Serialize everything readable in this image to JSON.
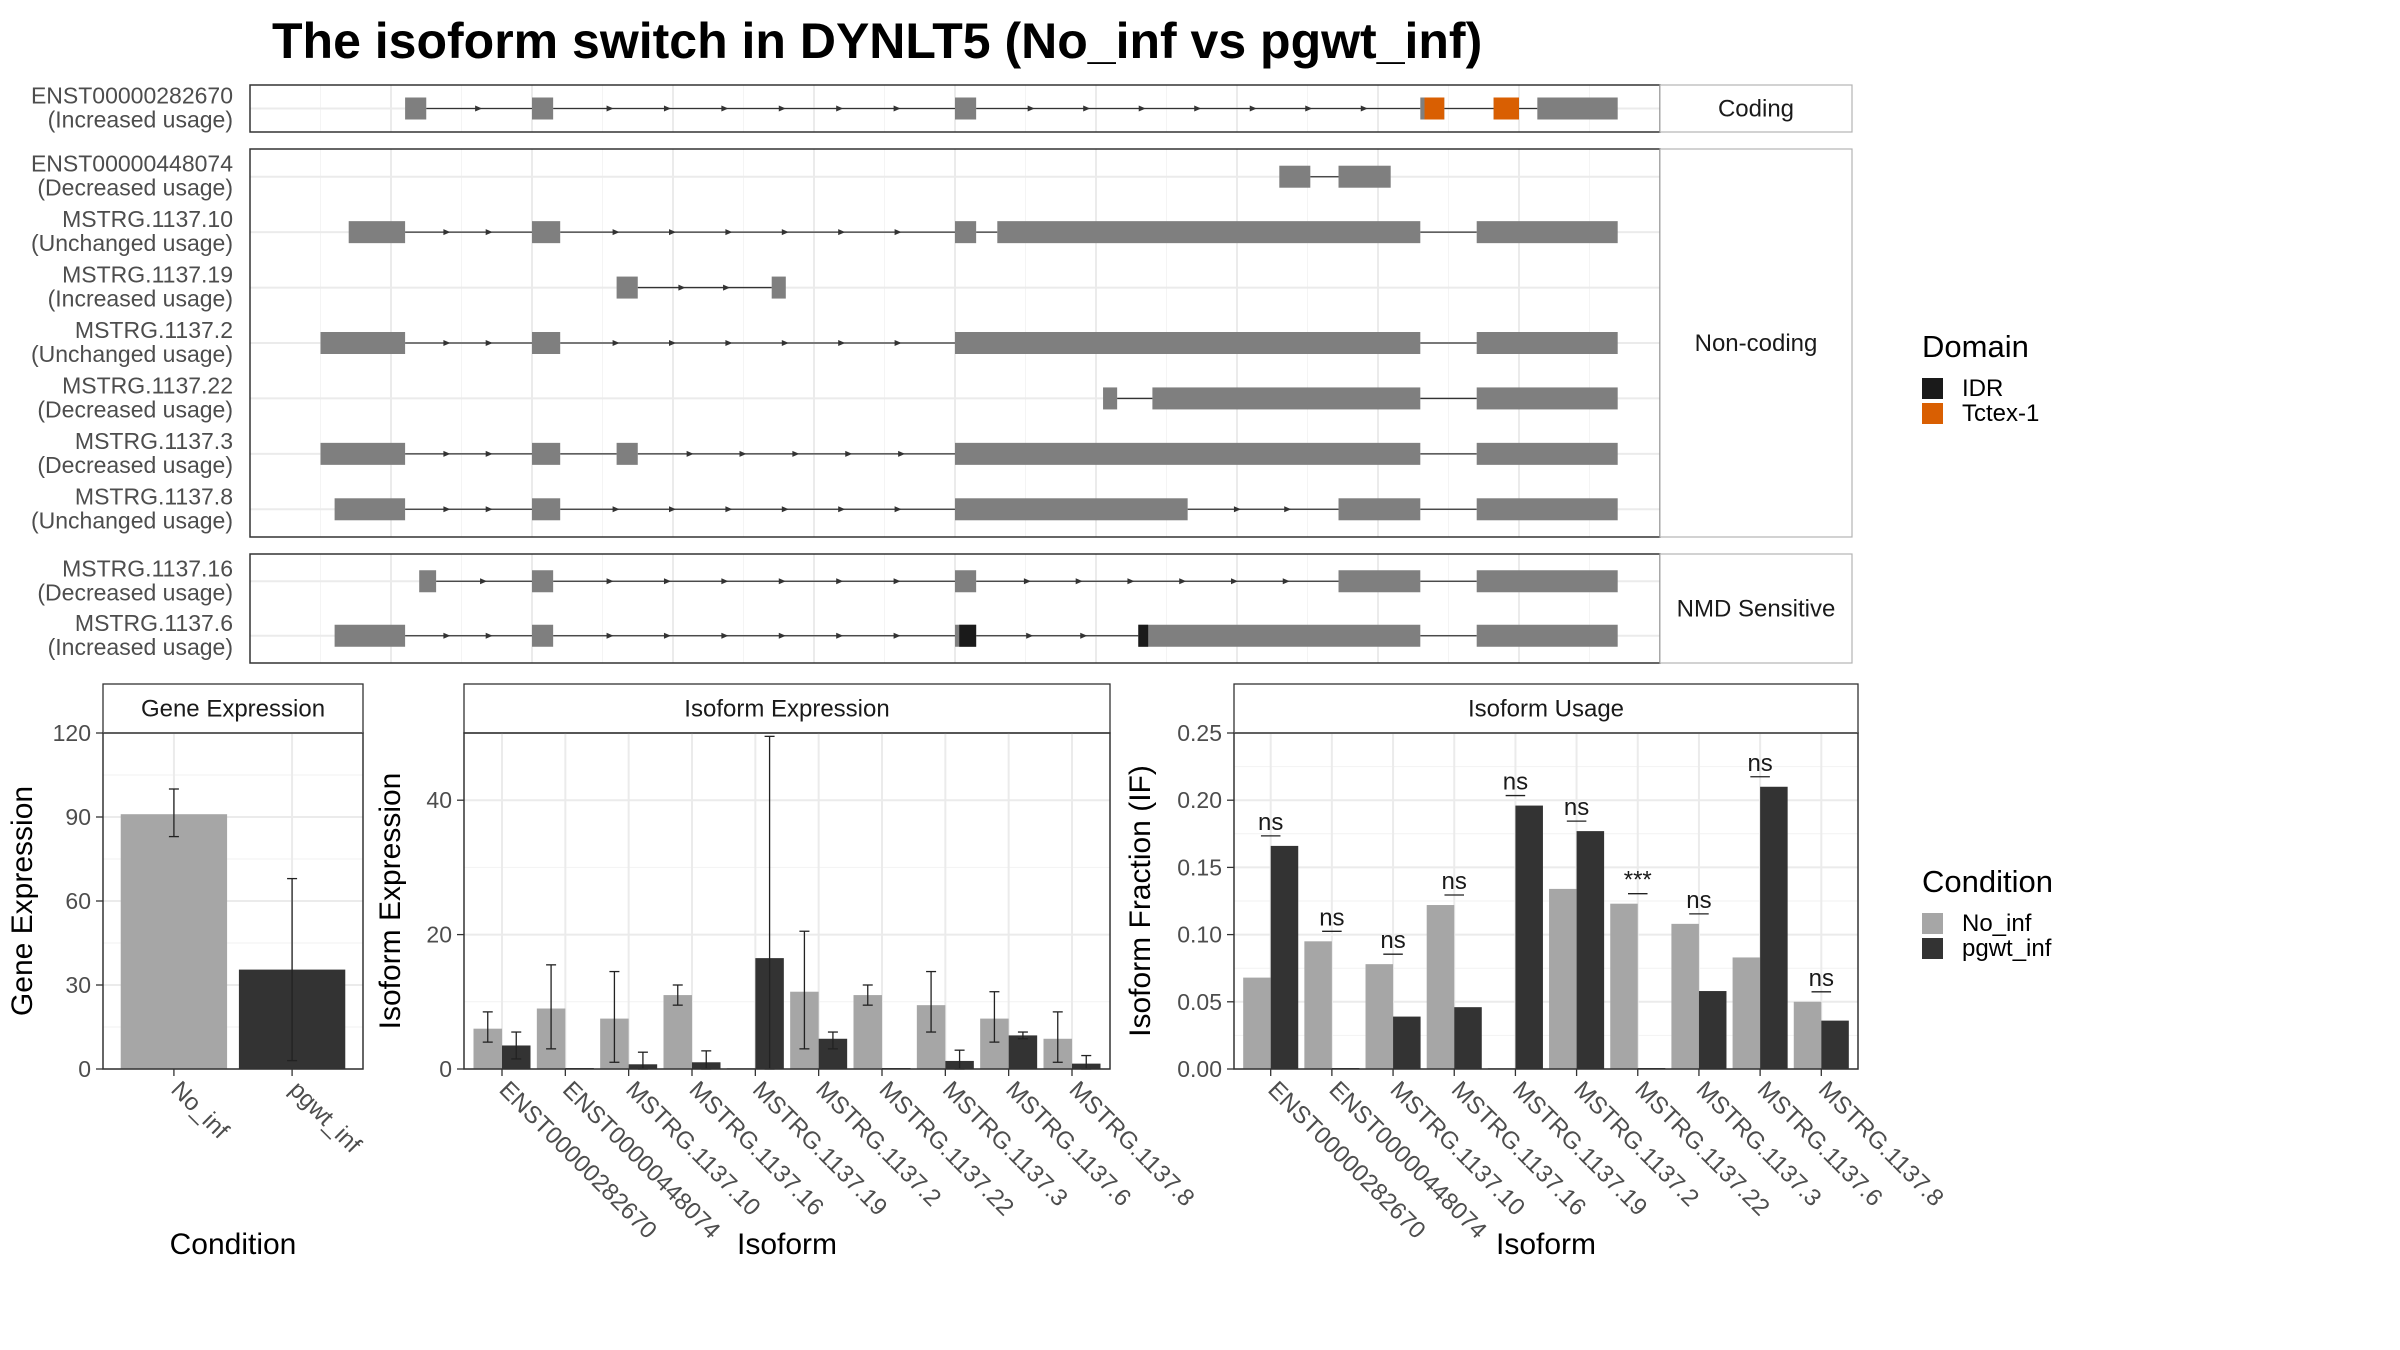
{
  "title": "The isoform switch in DYNLT5 (No_inf vs pgwt_inf)",
  "colors": {
    "no_inf": "#a6a6a6",
    "pgwt_inf": "#333333",
    "exon": "#7f7f7f",
    "idr": "#1a1a1a",
    "tctex": "#d95f02"
  },
  "structure": {
    "facets": [
      "Coding",
      "Non-coding",
      "NMD Sensitive"
    ],
    "transcripts": [
      {
        "facet": "Coding",
        "name": "ENST00000282670",
        "usage": "(Increased usage)",
        "exons": [
          [
            2100,
            2250
          ],
          [
            3000,
            3150
          ],
          [
            6000,
            6150
          ],
          [
            9300,
            9470
          ],
          [
            9820,
            10000
          ],
          [
            10130,
            10700
          ]
        ],
        "domains": [
          {
            "type": "tctex",
            "span": [
              9330,
              9470
            ]
          },
          {
            "type": "tctex",
            "span": [
              9820,
              10000
            ]
          }
        ]
      },
      {
        "facet": "Non-coding",
        "name": "ENST00000448074",
        "usage": "(Decreased usage)",
        "exons": [
          [
            8300,
            8520
          ],
          [
            8720,
            9090
          ]
        ],
        "domains": []
      },
      {
        "facet": "Non-coding",
        "name": "MSTRG.1137.10",
        "usage": "(Unchanged usage)",
        "exons": [
          [
            1700,
            2100
          ],
          [
            3000,
            3200
          ],
          [
            6000,
            6150
          ],
          [
            6300,
            9300
          ],
          [
            9700,
            10700
          ]
        ],
        "domains": []
      },
      {
        "facet": "Non-coding",
        "name": "MSTRG.1137.19",
        "usage": "(Increased usage)",
        "exons": [
          [
            3600,
            3750
          ],
          [
            4700,
            4800
          ]
        ],
        "domains": []
      },
      {
        "facet": "Non-coding",
        "name": "MSTRG.1137.2",
        "usage": "(Unchanged usage)",
        "exons": [
          [
            1500,
            2100
          ],
          [
            3000,
            3200
          ],
          [
            6000,
            9300
          ],
          [
            9700,
            10700
          ]
        ],
        "domains": []
      },
      {
        "facet": "Non-coding",
        "name": "MSTRG.1137.22",
        "usage": "(Decreased usage)",
        "exons": [
          [
            7050,
            7150
          ],
          [
            7400,
            9300
          ],
          [
            9700,
            10700
          ]
        ],
        "domains": []
      },
      {
        "facet": "Non-coding",
        "name": "MSTRG.1137.3",
        "usage": "(Decreased usage)",
        "exons": [
          [
            1500,
            2100
          ],
          [
            3000,
            3200
          ],
          [
            3600,
            3750
          ],
          [
            6000,
            9300
          ],
          [
            9700,
            10700
          ]
        ],
        "domains": []
      },
      {
        "facet": "Non-coding",
        "name": "MSTRG.1137.8",
        "usage": "(Unchanged usage)",
        "exons": [
          [
            1600,
            2100
          ],
          [
            3000,
            3200
          ],
          [
            6000,
            7650
          ],
          [
            8720,
            9300
          ],
          [
            9700,
            10700
          ]
        ],
        "domains": []
      },
      {
        "facet": "NMD Sensitive",
        "name": "MSTRG.1137.16",
        "usage": "(Decreased usage)",
        "exons": [
          [
            2200,
            2320
          ],
          [
            3000,
            3150
          ],
          [
            6000,
            6150
          ],
          [
            8720,
            9300
          ],
          [
            9700,
            10700
          ]
        ],
        "domains": []
      },
      {
        "facet": "NMD Sensitive",
        "name": "MSTRG.1137.6",
        "usage": "(Increased usage)",
        "exons": [
          [
            1600,
            2100
          ],
          [
            3000,
            3150
          ],
          [
            6000,
            6150
          ],
          [
            7300,
            9300
          ],
          [
            9700,
            10700
          ]
        ],
        "domains": [
          {
            "type": "idr",
            "span": [
              6030,
              6150
            ]
          },
          {
            "type": "idr",
            "span": [
              7300,
              7370
            ]
          }
        ]
      }
    ]
  },
  "legends": {
    "domain": {
      "title": "Domain",
      "items": [
        {
          "label": "IDR",
          "color": "#1a1a1a"
        },
        {
          "label": "Tctex-1",
          "color": "#d95f02"
        }
      ]
    },
    "condition": {
      "title": "Condition",
      "items": [
        {
          "label": "No_inf",
          "color": "#a6a6a6"
        },
        {
          "label": "pgwt_inf",
          "color": "#333333"
        }
      ]
    }
  },
  "chart_data": [
    {
      "type": "bar",
      "title": "Gene Expression",
      "xlabel": "Condition",
      "ylabel": "Gene Expression",
      "ylim": [
        0,
        120
      ],
      "yticks": [
        0,
        30,
        60,
        90,
        120
      ],
      "categories": [
        "No_inf",
        "pgwt_inf"
      ],
      "values": [
        91,
        35.5
      ],
      "error": [
        [
          83,
          100
        ],
        [
          3,
          68
        ]
      ]
    },
    {
      "type": "bar",
      "title": "Isoform Expression",
      "xlabel": "Isoform",
      "ylabel": "Isoform Expression",
      "ylim": [
        0,
        50
      ],
      "yticks": [
        0,
        20,
        40
      ],
      "categories": [
        "ENST00000282670",
        "ENST00000448074",
        "MSTRG.1137.10",
        "MSTRG.1137.16",
        "MSTRG.1137.19",
        "MSTRG.1137.2",
        "MSTRG.1137.22",
        "MSTRG.1137.3",
        "MSTRG.1137.6",
        "MSTRG.1137.8"
      ],
      "series": [
        {
          "name": "No_inf",
          "values": [
            6,
            9,
            7.5,
            11,
            0,
            11.5,
            11,
            9.5,
            7.5,
            4.5
          ],
          "error": [
            [
              4,
              8.5
            ],
            [
              3,
              15.5
            ],
            [
              1,
              14.5
            ],
            [
              9.5,
              12.5
            ],
            [
              0,
              0
            ],
            [
              3,
              20.5
            ],
            [
              9.5,
              12.5
            ],
            [
              5.5,
              14.5
            ],
            [
              4,
              11.5
            ],
            [
              1,
              8.5
            ]
          ]
        },
        {
          "name": "pgwt_inf",
          "values": [
            3.5,
            0,
            0.7,
            1,
            16.5,
            4.5,
            0,
            1.2,
            5,
            0.8
          ],
          "error": [
            [
              1.5,
              5.5
            ],
            [
              0,
              0
            ],
            [
              0,
              2.5
            ],
            [
              0,
              2.7
            ],
            [
              0,
              49.5
            ],
            [
              3,
              5.5
            ],
            [
              0,
              0
            ],
            [
              0,
              2.8
            ],
            [
              4.5,
              5.5
            ],
            [
              0,
              2
            ]
          ]
        }
      ]
    },
    {
      "type": "bar",
      "title": "Isoform Usage",
      "xlabel": "Isoform",
      "ylabel": "Isoform Fraction (IF)",
      "ylim": [
        0,
        0.25
      ],
      "yticks": [
        "0.00",
        "0.05",
        "0.10",
        "0.15",
        "0.20",
        "0.25"
      ],
      "categories": [
        "ENST00000282670",
        "ENST00000448074",
        "MSTRG.1137.10",
        "MSTRG.1137.16",
        "MSTRG.1137.19",
        "MSTRG.1137.2",
        "MSTRG.1137.22",
        "MSTRG.1137.3",
        "MSTRG.1137.6",
        "MSTRG.1137.8"
      ],
      "series": [
        {
          "name": "No_inf",
          "values": [
            0.068,
            0.095,
            0.078,
            0.122,
            0,
            0.134,
            0.123,
            0.108,
            0.083,
            0.05
          ]
        },
        {
          "name": "pgwt_inf",
          "values": [
            0.166,
            0,
            0.039,
            0.046,
            0.196,
            0.177,
            0,
            0.058,
            0.21,
            0.036
          ]
        }
      ],
      "significance": [
        "ns",
        "ns",
        "ns",
        "ns",
        "ns",
        "ns",
        "***",
        "ns",
        "ns",
        "ns"
      ]
    }
  ]
}
